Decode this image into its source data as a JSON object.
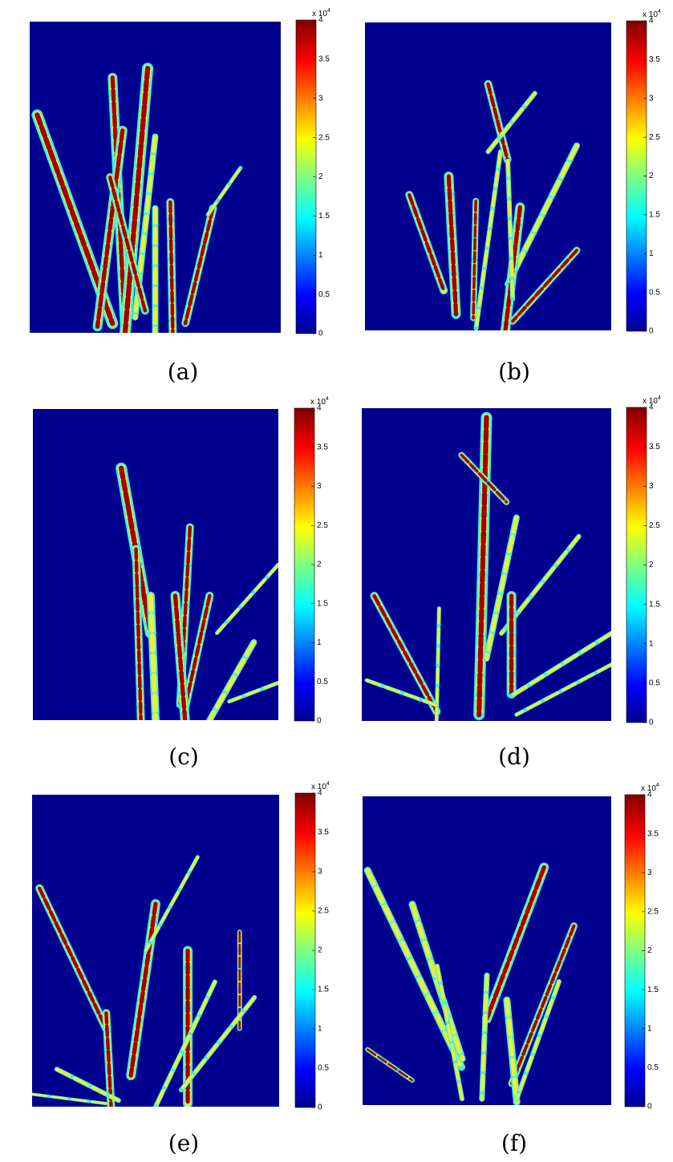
{
  "panels": [
    {
      "caption": "(a)"
    },
    {
      "caption": "(b)"
    },
    {
      "caption": "(c)"
    },
    {
      "caption": "(d)"
    },
    {
      "caption": "(e)"
    },
    {
      "caption": "(f)"
    }
  ],
  "colorbar": {
    "clim": [
      0,
      4
    ],
    "ticks": [
      0,
      0.5,
      1,
      1.5,
      2,
      2.5,
      3,
      3.5,
      4
    ],
    "multiplier": "x 10",
    "multiplier_exponent": "4"
  }
}
